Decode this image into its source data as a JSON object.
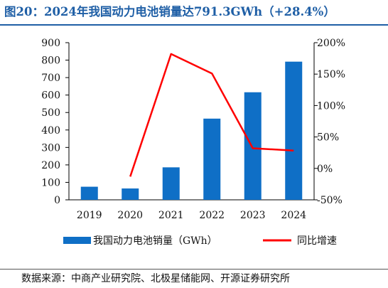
{
  "page": {
    "title": "图20：2024年我国动力电池销量达791.3GWh（+28.4%）",
    "source": "数据来源：中商产业研究院、北极星储能网、开源证券研究所"
  },
  "colors": {
    "title": "#1f5fa6",
    "bar": "#0f6fc6",
    "line": "#ff0000"
  },
  "chart_data": {
    "type": "bar",
    "categories": [
      "2019",
      "2020",
      "2021",
      "2022",
      "2023",
      "2024"
    ],
    "series": [
      {
        "name": "我国动力电池销量（GWh）",
        "type": "bar",
        "axis": "left",
        "values": [
          75,
          65,
          186,
          465,
          616,
          791.3
        ]
      },
      {
        "name": "同比增速",
        "type": "line",
        "axis": "right",
        "values": [
          null,
          -13,
          182,
          151,
          32,
          28.4
        ]
      }
    ],
    "y_left": {
      "min": 0,
      "max": 900,
      "ticks": [
        0,
        100,
        200,
        300,
        400,
        500,
        600,
        700,
        800,
        900
      ]
    },
    "y_right": {
      "min": -50,
      "max": 200,
      "ticks": [
        -50,
        0,
        50,
        100,
        150,
        200
      ],
      "tick_labels": [
        "-50%",
        "0%",
        "50%",
        "100%",
        "150%",
        "200%"
      ]
    },
    "legend_position": "bottom",
    "grid": false
  }
}
